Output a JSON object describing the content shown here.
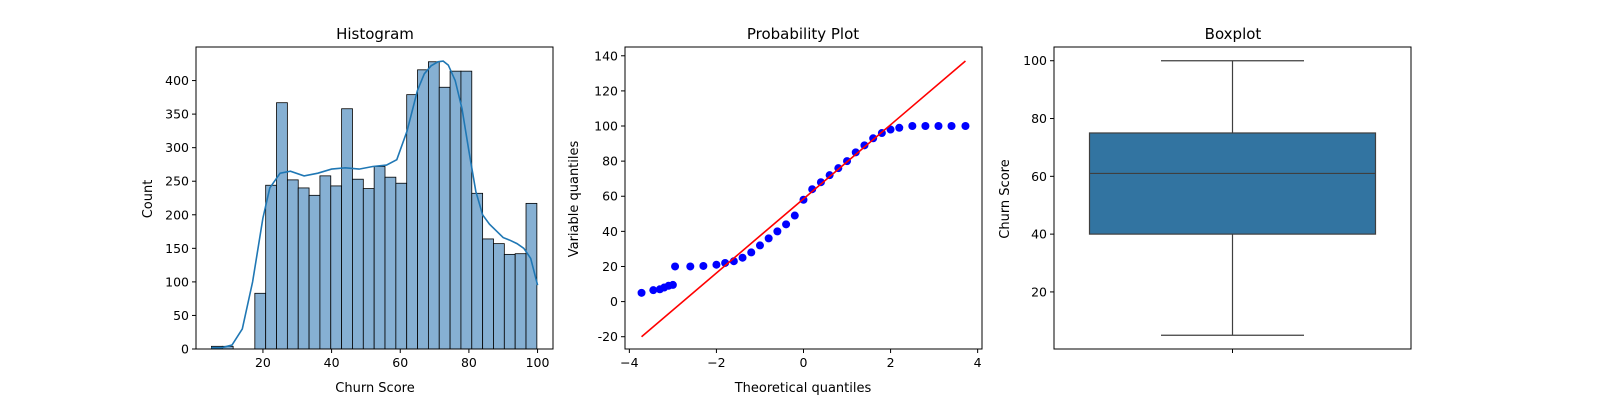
{
  "chart_data": [
    {
      "type": "bar",
      "title": "Histogram",
      "xlabel": "Churn Score",
      "ylabel": "Count",
      "xlim": [
        0.5,
        104.5
      ],
      "ylim": [
        0,
        450
      ],
      "xticks": [
        20,
        40,
        60,
        80,
        100
      ],
      "yticks": [
        0,
        50,
        100,
        150,
        200,
        250,
        300,
        350,
        400
      ],
      "bin_width": 3.16,
      "bars": [
        {
          "x0": 5.0,
          "count": 4
        },
        {
          "x0": 8.16,
          "count": 4
        },
        {
          "x0": 17.64,
          "count": 83
        },
        {
          "x0": 20.8,
          "count": 244
        },
        {
          "x0": 23.96,
          "count": 367
        },
        {
          "x0": 27.12,
          "count": 252
        },
        {
          "x0": 30.28,
          "count": 240
        },
        {
          "x0": 33.44,
          "count": 229
        },
        {
          "x0": 36.6,
          "count": 258
        },
        {
          "x0": 39.76,
          "count": 243
        },
        {
          "x0": 42.92,
          "count": 358
        },
        {
          "x0": 46.08,
          "count": 253
        },
        {
          "x0": 49.24,
          "count": 239
        },
        {
          "x0": 52.4,
          "count": 272
        },
        {
          "x0": 55.56,
          "count": 256
        },
        {
          "x0": 58.72,
          "count": 247
        },
        {
          "x0": 61.88,
          "count": 379
        },
        {
          "x0": 65.04,
          "count": 416
        },
        {
          "x0": 68.2,
          "count": 428
        },
        {
          "x0": 71.36,
          "count": 390
        },
        {
          "x0": 74.52,
          "count": 414
        },
        {
          "x0": 77.68,
          "count": 414
        },
        {
          "x0": 80.84,
          "count": 232
        },
        {
          "x0": 84.0,
          "count": 164
        },
        {
          "x0": 87.16,
          "count": 157
        },
        {
          "x0": 90.32,
          "count": 141
        },
        {
          "x0": 93.48,
          "count": 142
        },
        {
          "x0": 96.64,
          "count": 217
        }
      ],
      "kde": {
        "x": [
          5,
          8,
          11,
          14,
          17,
          20,
          22,
          25,
          28,
          32,
          36,
          40,
          44,
          48,
          52,
          56,
          59,
          62,
          65,
          67,
          69,
          71,
          72.5,
          74,
          76,
          78,
          80,
          82,
          84,
          86,
          88,
          90,
          92,
          94,
          96,
          98,
          100
        ],
        "y": [
          2,
          2,
          6,
          30,
          100,
          195,
          240,
          262,
          265,
          258,
          262,
          268,
          270,
          268,
          272,
          274,
          282,
          325,
          385,
          410,
          422,
          428,
          429,
          423,
          400,
          358,
          295,
          235,
          200,
          186,
          176,
          166,
          162,
          157,
          150,
          135,
          95
        ]
      },
      "bar_color": "#86b0d3",
      "line_color": "#1f77b4"
    },
    {
      "type": "scatter",
      "title": "Probability Plot",
      "xlabel": "Theoretical quantiles",
      "ylabel": "Variable quantiles",
      "xlim": [
        -4.1,
        4.1
      ],
      "ylim": [
        -27,
        145
      ],
      "xticks": [
        -4,
        -2,
        0,
        2,
        4
      ],
      "yticks": [
        -20,
        0,
        20,
        40,
        60,
        80,
        100,
        120,
        140
      ],
      "points": [
        [
          -3.72,
          5
        ],
        [
          -3.45,
          6.5
        ],
        [
          -3.3,
          7
        ],
        [
          -3.2,
          8
        ],
        [
          -3.1,
          9
        ],
        [
          -3.0,
          9.5
        ],
        [
          -2.95,
          20
        ],
        [
          -2.6,
          20
        ],
        [
          -2.3,
          20.3
        ],
        [
          -2.0,
          21
        ],
        [
          -1.8,
          22
        ],
        [
          -1.6,
          23
        ],
        [
          -1.4,
          25
        ],
        [
          -1.2,
          28
        ],
        [
          -1.0,
          32
        ],
        [
          -0.8,
          36
        ],
        [
          -0.6,
          40
        ],
        [
          -0.4,
          44
        ],
        [
          -0.2,
          49
        ],
        [
          0.0,
          58
        ],
        [
          0.2,
          64
        ],
        [
          0.4,
          68
        ],
        [
          0.6,
          72
        ],
        [
          0.8,
          76
        ],
        [
          1.0,
          80
        ],
        [
          1.2,
          85
        ],
        [
          1.4,
          89
        ],
        [
          1.6,
          93
        ],
        [
          1.8,
          96
        ],
        [
          2.0,
          98
        ],
        [
          2.2,
          99
        ],
        [
          2.5,
          100
        ],
        [
          2.8,
          100
        ],
        [
          3.1,
          100
        ],
        [
          3.4,
          100
        ],
        [
          3.72,
          100
        ]
      ],
      "fit_line": {
        "x": [
          -3.72,
          3.72
        ],
        "y": [
          -20,
          137
        ]
      },
      "point_color": "#0000ff",
      "line_color": "#ff0000"
    },
    {
      "type": "box",
      "title": "Boxplot",
      "ylabel": "Churn Score",
      "ylim": [
        0.25,
        104.75
      ],
      "yticks": [
        20,
        40,
        60,
        80,
        100
      ],
      "min": 5,
      "q1": 40,
      "median": 61,
      "q3": 75,
      "max": 100,
      "box_color": "#3274a1"
    }
  ]
}
